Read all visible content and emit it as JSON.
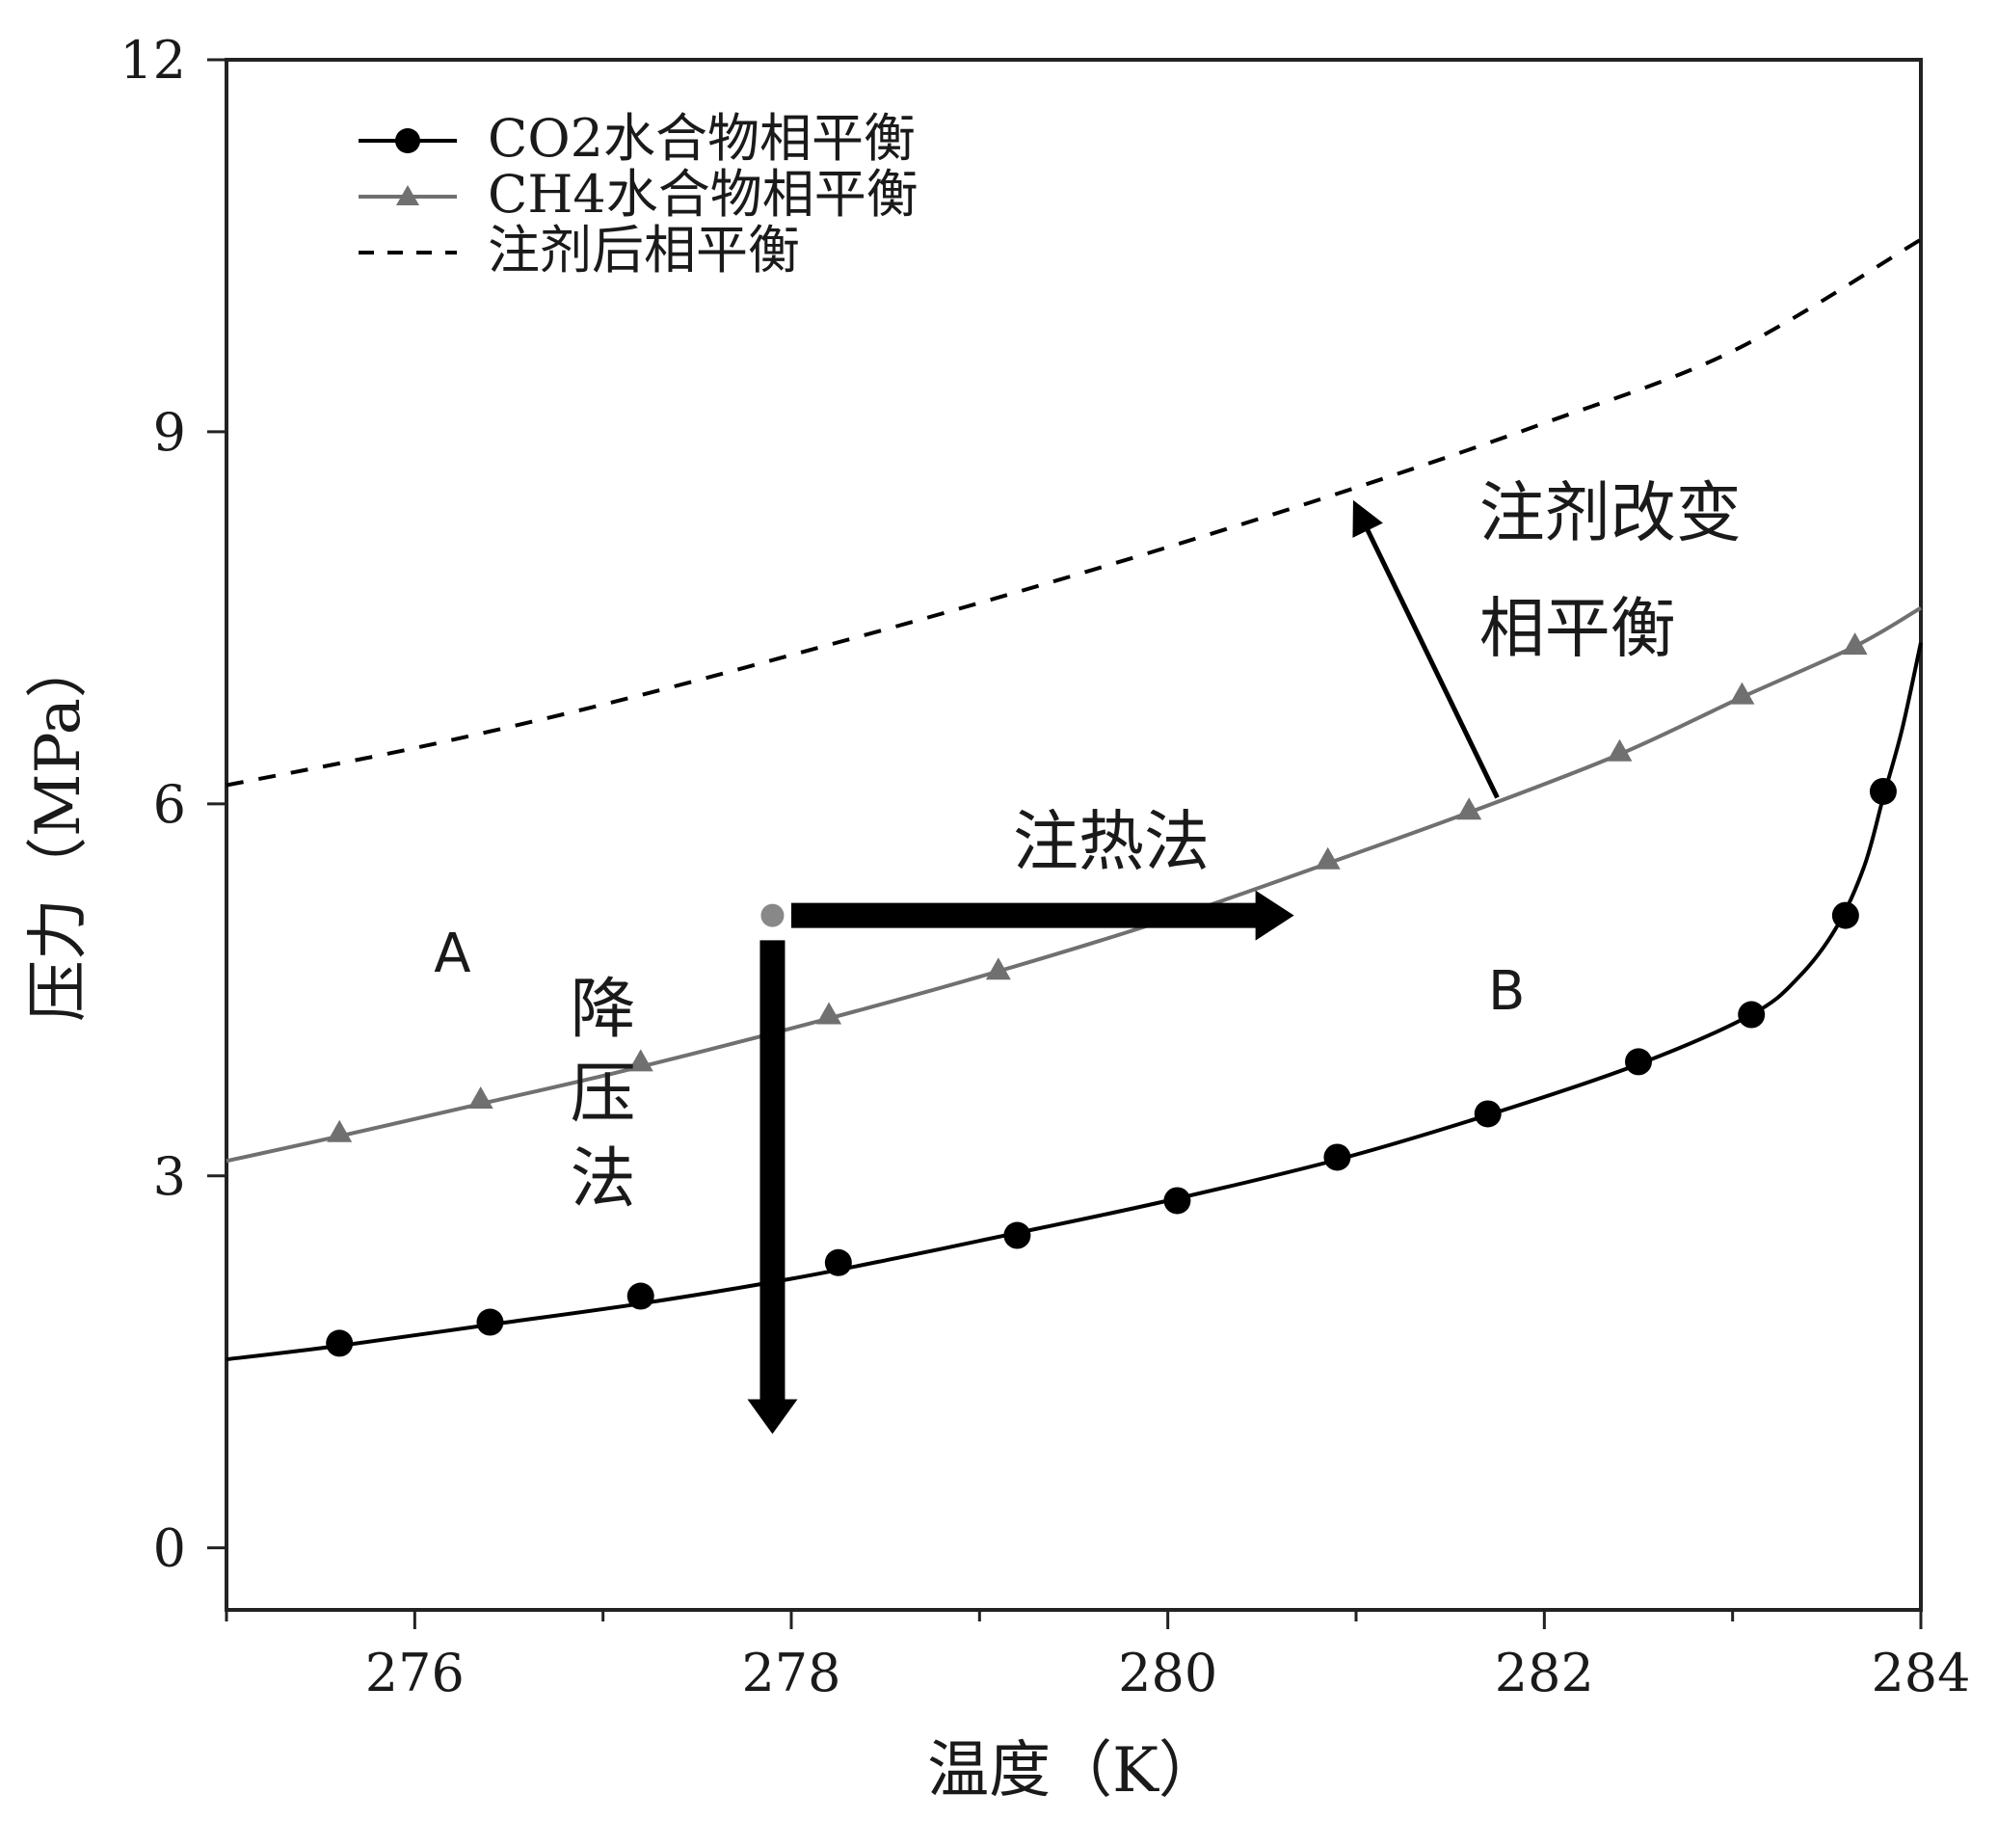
{
  "chart_data": {
    "type": "line",
    "xlabel": "温度（K）",
    "ylabel": "压力（MPa）",
    "xlim": [
      275,
      284
    ],
    "ylim": [
      -0.5,
      12
    ],
    "x_ticks": [
      276,
      278,
      280,
      282,
      284
    ],
    "y_ticks": [
      0,
      3,
      6,
      9,
      12
    ],
    "legend_position": "top-left",
    "series": [
      {
        "name": "CO2水合物相平衡",
        "color": "#000000",
        "marker": "circle",
        "line_style": "solid",
        "markers": [
          {
            "x": 275.6,
            "y": 1.65
          },
          {
            "x": 276.4,
            "y": 1.82
          },
          {
            "x": 277.2,
            "y": 2.03
          },
          {
            "x": 278.25,
            "y": 2.3
          },
          {
            "x": 279.2,
            "y": 2.52
          },
          {
            "x": 280.05,
            "y": 2.8
          },
          {
            "x": 280.9,
            "y": 3.15
          },
          {
            "x": 281.7,
            "y": 3.5
          },
          {
            "x": 282.5,
            "y": 3.92
          },
          {
            "x": 283.1,
            "y": 4.3
          },
          {
            "x": 283.6,
            "y": 5.1
          },
          {
            "x": 283.8,
            "y": 6.1
          }
        ],
        "curve": [
          {
            "x": 275.0,
            "y": 1.52
          },
          {
            "x": 275.6,
            "y": 1.63
          },
          {
            "x": 276.4,
            "y": 1.8
          },
          {
            "x": 277.2,
            "y": 1.97
          },
          {
            "x": 278.0,
            "y": 2.17
          },
          {
            "x": 278.6,
            "y": 2.35
          },
          {
            "x": 279.2,
            "y": 2.54
          },
          {
            "x": 280.0,
            "y": 2.8
          },
          {
            "x": 280.9,
            "y": 3.13
          },
          {
            "x": 281.7,
            "y": 3.49
          },
          {
            "x": 282.5,
            "y": 3.9
          },
          {
            "x": 283.1,
            "y": 4.3
          },
          {
            "x": 283.35,
            "y": 4.6
          },
          {
            "x": 283.55,
            "y": 5.0
          },
          {
            "x": 283.7,
            "y": 5.5
          },
          {
            "x": 283.8,
            "y": 6.05
          },
          {
            "x": 283.9,
            "y": 6.6
          },
          {
            "x": 284.0,
            "y": 7.3
          }
        ]
      },
      {
        "name": "CH4水合物相平衡",
        "color": "#707070",
        "marker": "triangle",
        "line_style": "solid",
        "markers": [
          {
            "x": 275.6,
            "y": 3.35
          },
          {
            "x": 276.35,
            "y": 3.62
          },
          {
            "x": 277.2,
            "y": 3.92
          },
          {
            "x": 278.2,
            "y": 4.3
          },
          {
            "x": 279.1,
            "y": 4.66
          },
          {
            "x": 280.85,
            "y": 5.55
          },
          {
            "x": 281.6,
            "y": 5.95
          },
          {
            "x": 282.4,
            "y": 6.42
          },
          {
            "x": 283.05,
            "y": 6.88
          },
          {
            "x": 283.65,
            "y": 7.28
          }
        ],
        "curve": [
          {
            "x": 275.0,
            "y": 3.12
          },
          {
            "x": 275.6,
            "y": 3.32
          },
          {
            "x": 276.35,
            "y": 3.58
          },
          {
            "x": 277.2,
            "y": 3.88
          },
          {
            "x": 278.2,
            "y": 4.27
          },
          {
            "x": 279.1,
            "y": 4.65
          },
          {
            "x": 280.0,
            "y": 5.07
          },
          {
            "x": 280.85,
            "y": 5.52
          },
          {
            "x": 281.6,
            "y": 5.93
          },
          {
            "x": 282.4,
            "y": 6.4
          },
          {
            "x": 283.05,
            "y": 6.86
          },
          {
            "x": 283.65,
            "y": 7.27
          },
          {
            "x": 284.0,
            "y": 7.58
          }
        ]
      },
      {
        "name": "注剂后相平衡",
        "color": "#000000",
        "marker": "none",
        "line_style": "dashed",
        "curve": [
          {
            "x": 275.0,
            "y": 6.15
          },
          {
            "x": 276.0,
            "y": 6.45
          },
          {
            "x": 277.0,
            "y": 6.8
          },
          {
            "x": 278.0,
            "y": 7.2
          },
          {
            "x": 279.0,
            "y": 7.62
          },
          {
            "x": 280.0,
            "y": 8.07
          },
          {
            "x": 281.0,
            "y": 8.55
          },
          {
            "x": 282.0,
            "y": 9.07
          },
          {
            "x": 283.0,
            "y": 9.65
          },
          {
            "x": 284.0,
            "y": 10.55
          }
        ]
      }
    ],
    "annotations": {
      "region_a": {
        "text": "A",
        "x": 276.2,
        "y": 4.8
      },
      "region_b": {
        "text": "B",
        "x": 281.8,
        "y": 4.5
      },
      "start_point": {
        "x": 277.9,
        "y": 5.1
      },
      "heating_arrow": {
        "label": "注热法",
        "from": {
          "x": 278.0,
          "y": 5.1
        },
        "to": {
          "x": 280.65,
          "y": 5.1
        },
        "label_at": {
          "x": 279.7,
          "y": 5.7
        }
      },
      "depressurization_arrow": {
        "label": [
          "降",
          "压",
          "法"
        ],
        "from": {
          "x": 277.9,
          "y": 4.9
        },
        "to": {
          "x": 277.9,
          "y": 0.95
        },
        "label_at": {
          "x": 277.0,
          "y": 4.35
        }
      },
      "injection_arrow": {
        "label": [
          "注剂改变",
          "相平衡"
        ],
        "from": {
          "x": 281.75,
          "y": 6.05
        },
        "to": {
          "x": 281.0,
          "y": 8.4
        },
        "label_at": {
          "x": 282.35,
          "y": 8.35
        }
      }
    }
  }
}
